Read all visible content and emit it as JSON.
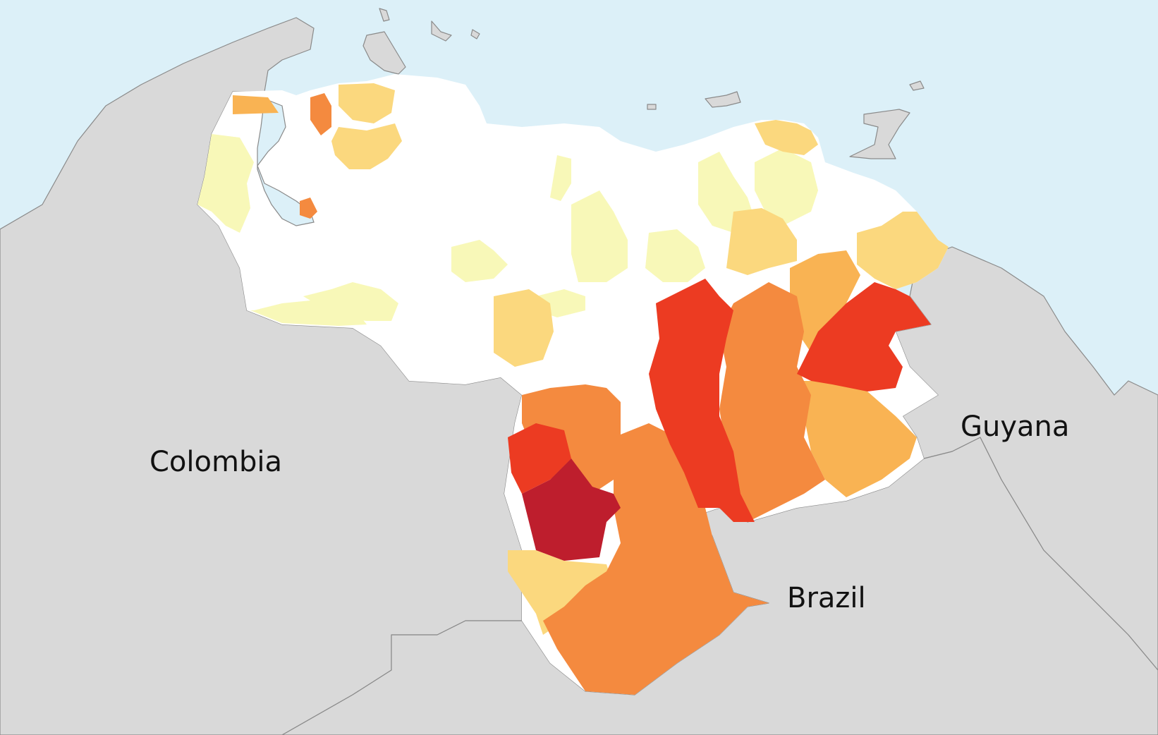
{
  "colors": {
    "sea": "#dcf0f8",
    "land": "#d9d9d9",
    "border": "#8a8a8a",
    "none": "#ffffff",
    "very_low": "#f8f8b8",
    "low": "#fbd87e",
    "medium": "#f9b353",
    "medium_high": "#f48a3f",
    "high": "#ec3b22",
    "very_high": "#be1e2d"
  },
  "labels": {
    "colombia": "Colombia",
    "brazil": "Brazil",
    "guyana": "Guyana"
  }
}
